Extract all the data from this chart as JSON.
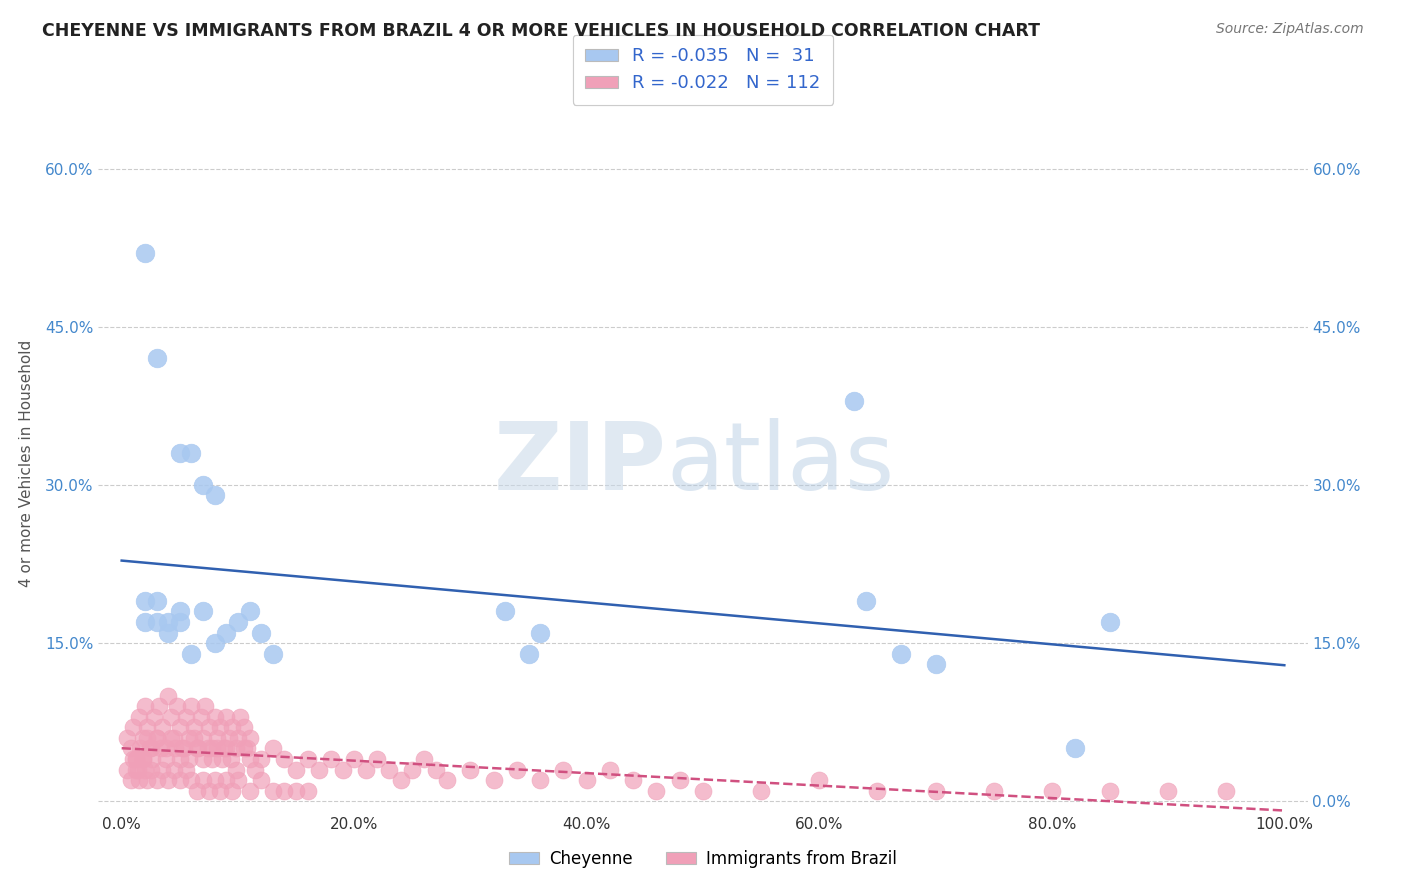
{
  "title": "CHEYENNE VS IMMIGRANTS FROM BRAZIL 4 OR MORE VEHICLES IN HOUSEHOLD CORRELATION CHART",
  "source": "Source: ZipAtlas.com",
  "ylabel": "4 or more Vehicles in Household",
  "xlabel": "",
  "xlim": [
    -0.02,
    1.02
  ],
  "ylim": [
    -0.01,
    0.65
  ],
  "xticks": [
    0.0,
    0.2,
    0.4,
    0.6,
    0.8,
    1.0
  ],
  "yticks": [
    0.0,
    0.15,
    0.3,
    0.45,
    0.6
  ],
  "xticklabels": [
    "0.0%",
    "20.0%",
    "40.0%",
    "60.0%",
    "80.0%",
    "100.0%"
  ],
  "yticklabels_left": [
    "",
    "15.0%",
    "30.0%",
    "45.0%",
    "60.0%"
  ],
  "yticklabels_right": [
    "0.0%",
    "15.0%",
    "30.0%",
    "45.0%",
    "60.0%"
  ],
  "background_color": "#ffffff",
  "watermark_zip": "ZIP",
  "watermark_atlas": "atlas",
  "cheyenne_color": "#a8c8f0",
  "brazil_color": "#f0a0b8",
  "cheyenne_line_color": "#3060b0",
  "brazil_line_color": "#d05080",
  "R_cheyenne": -0.035,
  "N_cheyenne": 31,
  "R_brazil": -0.022,
  "N_brazil": 112,
  "legend_labels": [
    "Cheyenne",
    "Immigrants from Brazil"
  ],
  "cheyenne_scatter_x": [
    0.02,
    0.03,
    0.05,
    0.06,
    0.07,
    0.08,
    0.02,
    0.03,
    0.04,
    0.05,
    0.06,
    0.07,
    0.08,
    0.09,
    0.1,
    0.11,
    0.12,
    0.13,
    0.35,
    0.63,
    0.67,
    0.02,
    0.03,
    0.04,
    0.05,
    0.33,
    0.36,
    0.64,
    0.7,
    0.82,
    0.85
  ],
  "cheyenne_scatter_y": [
    0.52,
    0.42,
    0.33,
    0.33,
    0.3,
    0.29,
    0.19,
    0.19,
    0.17,
    0.17,
    0.14,
    0.18,
    0.15,
    0.16,
    0.17,
    0.18,
    0.16,
    0.14,
    0.14,
    0.38,
    0.14,
    0.17,
    0.17,
    0.16,
    0.18,
    0.18,
    0.16,
    0.19,
    0.13,
    0.05,
    0.17
  ],
  "brazil_scatter_x": [
    0.005,
    0.008,
    0.01,
    0.012,
    0.015,
    0.018,
    0.02,
    0.022,
    0.025,
    0.028,
    0.03,
    0.032,
    0.035,
    0.038,
    0.04,
    0.042,
    0.045,
    0.048,
    0.05,
    0.052,
    0.055,
    0.058,
    0.06,
    0.062,
    0.065,
    0.068,
    0.07,
    0.072,
    0.075,
    0.078,
    0.08,
    0.082,
    0.085,
    0.088,
    0.09,
    0.092,
    0.095,
    0.098,
    0.1,
    0.102,
    0.105,
    0.108,
    0.11,
    0.012,
    0.014,
    0.016,
    0.018,
    0.022,
    0.024,
    0.026,
    0.03,
    0.034,
    0.038,
    0.042,
    0.046,
    0.05,
    0.054,
    0.058,
    0.062,
    0.066,
    0.07,
    0.074,
    0.078,
    0.082,
    0.086,
    0.09,
    0.094,
    0.098,
    0.105,
    0.11,
    0.115,
    0.12,
    0.13,
    0.14,
    0.15,
    0.16,
    0.17,
    0.18,
    0.19,
    0.2,
    0.21,
    0.22,
    0.23,
    0.24,
    0.25,
    0.26,
    0.27,
    0.28,
    0.3,
    0.32,
    0.34,
    0.36,
    0.38,
    0.4,
    0.42,
    0.44,
    0.46,
    0.48,
    0.5,
    0.55,
    0.6,
    0.65,
    0.7,
    0.75,
    0.8,
    0.85,
    0.9,
    0.95
  ],
  "brazil_scatter_y": [
    0.06,
    0.05,
    0.07,
    0.04,
    0.08,
    0.06,
    0.09,
    0.07,
    0.05,
    0.08,
    0.06,
    0.09,
    0.07,
    0.05,
    0.1,
    0.08,
    0.06,
    0.09,
    0.07,
    0.05,
    0.08,
    0.06,
    0.09,
    0.07,
    0.05,
    0.08,
    0.06,
    0.09,
    0.07,
    0.05,
    0.08,
    0.06,
    0.07,
    0.05,
    0.08,
    0.06,
    0.07,
    0.05,
    0.06,
    0.08,
    0.07,
    0.05,
    0.06,
    0.04,
    0.03,
    0.05,
    0.04,
    0.06,
    0.05,
    0.04,
    0.06,
    0.05,
    0.04,
    0.06,
    0.05,
    0.04,
    0.05,
    0.04,
    0.06,
    0.05,
    0.04,
    0.05,
    0.04,
    0.05,
    0.04,
    0.05,
    0.04,
    0.03,
    0.05,
    0.04,
    0.03,
    0.04,
    0.05,
    0.04,
    0.03,
    0.04,
    0.03,
    0.04,
    0.03,
    0.04,
    0.03,
    0.04,
    0.03,
    0.02,
    0.03,
    0.04,
    0.03,
    0.02,
    0.03,
    0.02,
    0.03,
    0.02,
    0.03,
    0.02,
    0.03,
    0.02,
    0.01,
    0.02,
    0.01,
    0.01,
    0.02,
    0.01,
    0.01,
    0.01,
    0.01,
    0.01,
    0.01,
    0.01
  ],
  "brazil_extra_x": [
    0.005,
    0.008,
    0.01,
    0.012,
    0.015,
    0.018,
    0.02,
    0.022,
    0.025,
    0.03,
    0.035,
    0.04,
    0.045,
    0.05,
    0.055,
    0.06,
    0.065,
    0.07,
    0.075,
    0.08,
    0.085,
    0.09,
    0.095,
    0.1,
    0.11,
    0.12,
    0.13,
    0.14,
    0.15,
    0.16
  ],
  "brazil_extra_y": [
    0.03,
    0.02,
    0.04,
    0.03,
    0.02,
    0.04,
    0.03,
    0.02,
    0.03,
    0.02,
    0.03,
    0.02,
    0.03,
    0.02,
    0.03,
    0.02,
    0.01,
    0.02,
    0.01,
    0.02,
    0.01,
    0.02,
    0.01,
    0.02,
    0.01,
    0.02,
    0.01,
    0.01,
    0.01,
    0.01
  ]
}
